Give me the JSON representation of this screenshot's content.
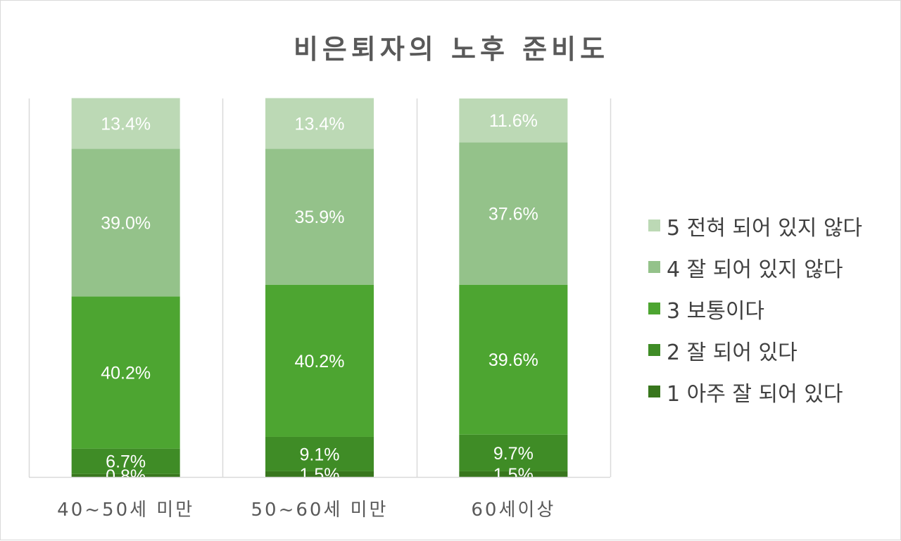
{
  "chart_data": {
    "type": "bar",
    "stacked": true,
    "percent": true,
    "title": "비은퇴자의 노후 준비도",
    "categories": [
      "40~50세 미만",
      "50~60세 미만",
      "60세이상"
    ],
    "series": [
      {
        "name": "1 아주 잘 되어 있다",
        "color": "#38761d",
        "values": [
          0.8,
          1.5,
          1.5
        ],
        "labels": [
          "0.8%",
          "1.5%",
          "1.5%"
        ]
      },
      {
        "name": "2 잘 되어 있다",
        "color": "#3f8c26",
        "values": [
          6.7,
          9.1,
          9.7
        ],
        "labels": [
          "6.7%",
          "9.1%",
          "9.7%"
        ]
      },
      {
        "name": "3 보통이다",
        "color": "#4da531",
        "values": [
          40.2,
          40.2,
          39.6
        ],
        "labels": [
          "40.2%",
          "40.2%",
          "39.6%"
        ]
      },
      {
        "name": "4 잘 되어 있지 않다",
        "color": "#94c28a",
        "values": [
          39.0,
          35.9,
          37.6
        ],
        "labels": [
          "39.0%",
          "35.9%",
          "37.6%"
        ]
      },
      {
        "name": "5 전혀 되어 있지 않다",
        "color": "#bcd9b5",
        "values": [
          13.4,
          13.4,
          11.6
        ],
        "labels": [
          "13.4%",
          "13.4%",
          "11.6%"
        ]
      }
    ],
    "ylim": [
      0,
      100
    ],
    "grid": false,
    "legend_position": "right",
    "legend_order": [
      "5 전혀 되어 있지 않다",
      "4 잘 되어 있지 않다",
      "3 보통이다",
      "2 잘 되어 있다",
      "1 아주 잘 되어 있다"
    ]
  }
}
